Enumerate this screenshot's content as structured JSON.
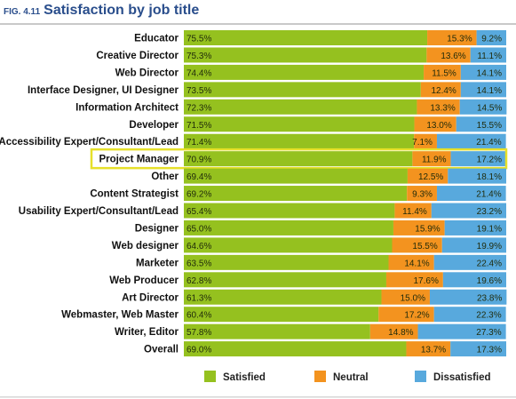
{
  "figure": {
    "number": "FIG. 4.11",
    "title": "Satisfaction by job title"
  },
  "colors": {
    "satisfied": "#95c11f",
    "neutral": "#f3931f",
    "dissatisfied": "#58a9dd",
    "highlight_border": "#e6e02a",
    "title": "#2a4e8c"
  },
  "highlighted_category": "Project Manager",
  "chart_data": {
    "type": "bar",
    "orientation": "horizontal",
    "stacked": true,
    "percent_stacked": true,
    "categories": [
      "Educator",
      "Creative Director",
      "Web Director",
      "Interface Designer, UI Designer",
      "Information Architect",
      "Developer",
      "Accessibility Expert/Consultant/Lead",
      "Project Manager",
      "Other",
      "Content Strategist",
      "Usability Expert/Consultant/Lead",
      "Designer",
      "Web designer",
      "Marketer",
      "Web Producer",
      "Art Director",
      "Webmaster, Web Master",
      "Writer, Editor",
      "Overall"
    ],
    "series": [
      {
        "name": "Satisfied",
        "values": [
          75.5,
          75.3,
          74.4,
          73.5,
          72.3,
          71.5,
          71.4,
          70.9,
          69.4,
          69.2,
          65.4,
          65.0,
          64.6,
          63.5,
          62.8,
          61.3,
          60.4,
          57.8,
          69.0
        ]
      },
      {
        "name": "Neutral",
        "values": [
          15.3,
          13.6,
          11.5,
          12.4,
          13.3,
          13.0,
          7.1,
          11.9,
          12.5,
          9.3,
          11.4,
          15.9,
          15.5,
          14.1,
          17.6,
          15.0,
          17.2,
          14.8,
          13.7
        ]
      },
      {
        "name": "Dissatisfied",
        "values": [
          9.2,
          11.1,
          14.1,
          14.1,
          14.5,
          15.5,
          21.4,
          17.2,
          18.1,
          21.4,
          23.2,
          19.1,
          19.9,
          22.4,
          19.6,
          23.8,
          22.3,
          27.3,
          17.3
        ]
      }
    ],
    "value_labels": {
      "Satisfied": [
        "75.5%",
        "75.3%",
        "74.4%",
        "73.5%",
        "72.3%",
        "71.5%",
        "71.4%",
        "70.9%",
        "69.4%",
        "69.2%",
        "65.4%",
        "65.0%",
        "64.6%",
        "63.5%",
        "62.8%",
        "61.3%",
        "60.4%",
        "57.8%",
        "69.0%"
      ],
      "Neutral": [
        "15.3%",
        "13.6%",
        "11.5%",
        "12.4%",
        "13.3%",
        "13.0%",
        "7.1%",
        "11.9%",
        "12.5%",
        "9.3%",
        "11.4%",
        "15.9%",
        "15.5%",
        "14.1%",
        "17.6%",
        "15.0%",
        "17.2%",
        "14.8%",
        "13.7%"
      ],
      "Dissatisfied": [
        "9.2%",
        "11.1%",
        "14.1%",
        "14.1%",
        "14.5%",
        "15.5%",
        "21.4%",
        "17.2%",
        "18.1%",
        "21.4%",
        "23.2%",
        "19.1%",
        "19.9%",
        "22.4%",
        "19.6%",
        "23.8%",
        "22.3%",
        "27.3%",
        "17.3%"
      ]
    },
    "xlim": [
      0,
      100
    ],
    "legend": {
      "position": "bottom",
      "entries": [
        "Satisfied",
        "Neutral",
        "Dissatisfied"
      ]
    },
    "grid": false
  }
}
